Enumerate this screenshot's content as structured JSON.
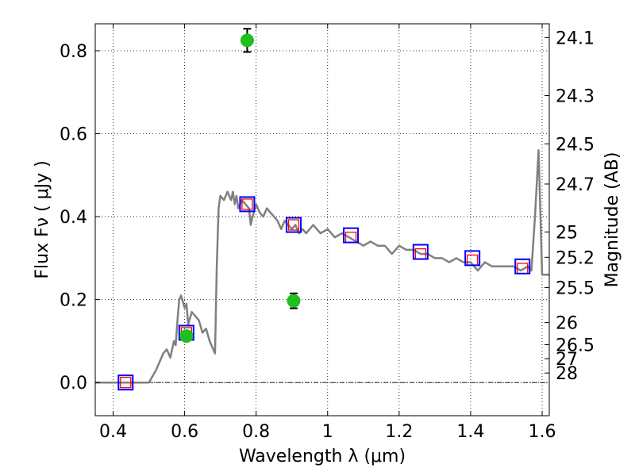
{
  "chart_data": {
    "type": "scatter",
    "xlabel": "Wavelength  λ (μm)",
    "ylabel": "Flux  Fν  ( μJy )",
    "y2label": "Magnitude (AB)",
    "xlim": [
      0.35,
      1.62
    ],
    "ylim": [
      -0.08,
      0.865
    ],
    "grid": true,
    "x_ticks": [
      {
        "value": 0.4,
        "label": "0.4"
      },
      {
        "value": 0.6,
        "label": "0.6"
      },
      {
        "value": 0.8,
        "label": "0.8"
      },
      {
        "value": 1.0,
        "label": "1"
      },
      {
        "value": 1.2,
        "label": "1.2"
      },
      {
        "value": 1.4,
        "label": "1.4"
      },
      {
        "value": 1.6,
        "label": "1.6"
      }
    ],
    "y_ticks": [
      {
        "value": 0.0,
        "label": "0.0"
      },
      {
        "value": 0.2,
        "label": "0.2"
      },
      {
        "value": 0.4,
        "label": "0.4"
      },
      {
        "value": 0.6,
        "label": "0.6"
      },
      {
        "value": 0.8,
        "label": "0.8"
      }
    ],
    "y2_ticks": [
      {
        "value": 24.1,
        "label": "24.1"
      },
      {
        "value": 24.3,
        "label": "24.3"
      },
      {
        "value": 24.5,
        "label": "24.5"
      },
      {
        "value": 24.7,
        "label": "24.7"
      },
      {
        "value": 25.0,
        "label": "25"
      },
      {
        "value": 25.2,
        "label": "25.2"
      },
      {
        "value": 25.5,
        "label": "25.5"
      },
      {
        "value": 26.0,
        "label": "26"
      },
      {
        "value": 26.5,
        "label": "26.5"
      },
      {
        "value": 27.0,
        "label": "27"
      },
      {
        "value": 28.0,
        "label": "28"
      }
    ],
    "model_sed": {
      "color": "#808080",
      "x": [
        0.35,
        0.4,
        0.44,
        0.5,
        0.52,
        0.54,
        0.55,
        0.56,
        0.57,
        0.575,
        0.58,
        0.585,
        0.59,
        0.6,
        0.605,
        0.61,
        0.62,
        0.63,
        0.64,
        0.65,
        0.66,
        0.67,
        0.68,
        0.685,
        0.69,
        0.695,
        0.7,
        0.71,
        0.72,
        0.73,
        0.735,
        0.74,
        0.745,
        0.75,
        0.755,
        0.76,
        0.77,
        0.78,
        0.785,
        0.79,
        0.8,
        0.805,
        0.81,
        0.82,
        0.83,
        0.84,
        0.85,
        0.86,
        0.87,
        0.88,
        0.89,
        0.9,
        0.91,
        0.92,
        0.93,
        0.94,
        0.95,
        0.96,
        0.97,
        0.98,
        1.0,
        1.02,
        1.04,
        1.06,
        1.08,
        1.1,
        1.12,
        1.14,
        1.16,
        1.18,
        1.2,
        1.22,
        1.24,
        1.26,
        1.28,
        1.3,
        1.32,
        1.34,
        1.36,
        1.38,
        1.4,
        1.41,
        1.42,
        1.44,
        1.46,
        1.48,
        1.5,
        1.52,
        1.54,
        1.56,
        1.57,
        1.58,
        1.59,
        1.6,
        1.62
      ],
      "y": [
        0.0,
        0.0,
        0.0,
        0.0,
        0.03,
        0.07,
        0.08,
        0.06,
        0.1,
        0.09,
        0.15,
        0.2,
        0.21,
        0.18,
        0.19,
        0.14,
        0.17,
        0.16,
        0.15,
        0.12,
        0.13,
        0.1,
        0.08,
        0.07,
        0.28,
        0.42,
        0.45,
        0.44,
        0.46,
        0.44,
        0.46,
        0.43,
        0.45,
        0.42,
        0.43,
        0.44,
        0.43,
        0.42,
        0.38,
        0.4,
        0.43,
        0.42,
        0.41,
        0.4,
        0.42,
        0.41,
        0.4,
        0.39,
        0.37,
        0.39,
        0.38,
        0.37,
        0.38,
        0.36,
        0.37,
        0.36,
        0.37,
        0.38,
        0.37,
        0.36,
        0.37,
        0.35,
        0.36,
        0.35,
        0.34,
        0.33,
        0.34,
        0.33,
        0.33,
        0.31,
        0.33,
        0.32,
        0.32,
        0.31,
        0.31,
        0.3,
        0.3,
        0.29,
        0.3,
        0.29,
        0.29,
        0.28,
        0.27,
        0.29,
        0.28,
        0.28,
        0.28,
        0.28,
        0.27,
        0.28,
        0.27,
        0.4,
        0.56,
        0.26,
        0.26
      ]
    },
    "filter_boxes_blue": {
      "color": "#0000ff",
      "x": [
        0.435,
        0.605,
        0.775,
        0.905,
        1.065,
        1.26,
        1.405,
        1.545
      ],
      "y": [
        0.0,
        0.12,
        0.43,
        0.38,
        0.355,
        0.315,
        0.3,
        0.28
      ]
    },
    "filter_boxes_red": {
      "color": "#ff0000",
      "x": [
        0.435,
        0.605,
        0.775,
        0.905,
        1.065,
        1.26,
        1.405,
        1.545
      ],
      "y": [
        0.0,
        0.12,
        0.43,
        0.38,
        0.35,
        0.31,
        0.295,
        0.275
      ]
    },
    "observed_points": {
      "color": "#1fbf1f",
      "x": [
        0.605,
        0.775,
        0.905
      ],
      "y": [
        0.112,
        0.825,
        0.197
      ],
      "yerr": [
        0.008,
        0.028,
        0.018
      ]
    }
  }
}
